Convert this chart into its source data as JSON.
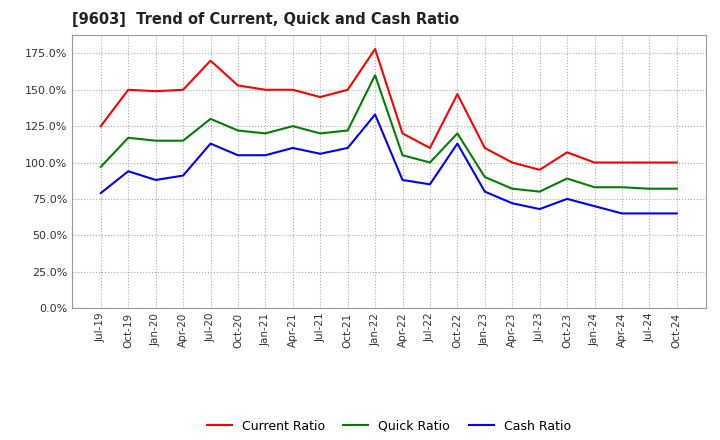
{
  "title": "[9603]  Trend of Current, Quick and Cash Ratio",
  "x_labels": [
    "Jul-19",
    "Oct-19",
    "Jan-20",
    "Apr-20",
    "Jul-20",
    "Oct-20",
    "Jan-21",
    "Apr-21",
    "Jul-21",
    "Oct-21",
    "Jan-22",
    "Apr-22",
    "Jul-22",
    "Oct-22",
    "Jan-23",
    "Apr-23",
    "Jul-23",
    "Oct-23",
    "Jan-24",
    "Apr-24",
    "Jul-24",
    "Oct-24"
  ],
  "current_ratio": [
    1.25,
    1.5,
    1.49,
    1.5,
    1.7,
    1.53,
    1.5,
    1.5,
    1.45,
    1.5,
    1.78,
    1.2,
    1.1,
    1.47,
    1.1,
    1.0,
    0.95,
    1.07,
    1.0,
    1.0,
    1.0,
    1.0
  ],
  "quick_ratio": [
    0.97,
    1.17,
    1.15,
    1.15,
    1.3,
    1.22,
    1.2,
    1.25,
    1.2,
    1.22,
    1.6,
    1.05,
    1.0,
    1.2,
    0.9,
    0.82,
    0.8,
    0.89,
    0.83,
    0.83,
    0.82,
    0.82
  ],
  "cash_ratio": [
    0.79,
    0.94,
    0.88,
    0.91,
    1.13,
    1.05,
    1.05,
    1.1,
    1.06,
    1.1,
    1.33,
    0.88,
    0.85,
    1.13,
    0.8,
    0.72,
    0.68,
    0.75,
    0.7,
    0.65,
    0.65,
    0.65
  ],
  "current_color": "#FF0000",
  "quick_color": "#008000",
  "cash_color": "#0000FF",
  "ylim": [
    0.0,
    1.875
  ],
  "yticks": [
    0.0,
    0.25,
    0.5,
    0.75,
    1.0,
    1.25,
    1.5,
    1.75
  ],
  "background_color": "#FFFFFF",
  "grid_color": "#AAAAAA"
}
